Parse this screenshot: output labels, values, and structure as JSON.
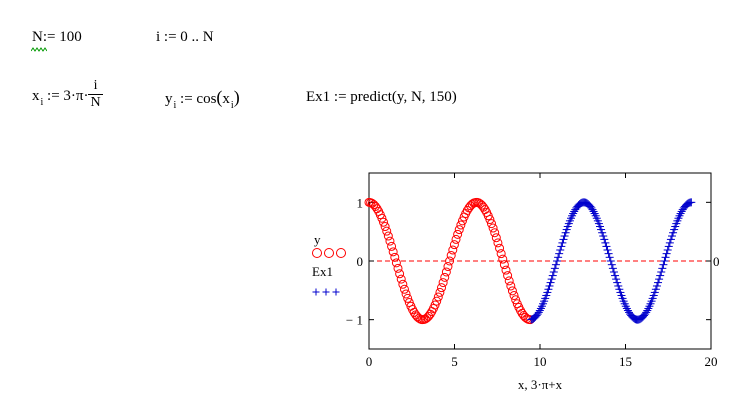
{
  "worksheet": {
    "def_N": {
      "name": "N",
      "assign": ":= ",
      "value": "100"
    },
    "def_i": {
      "text": "i := 0 .. N"
    },
    "def_x": {
      "lhs": "x",
      "sub": "i",
      "rhs_prefix": " := 3·π·",
      "frac_num": "i",
      "frac_den": "N"
    },
    "def_y": {
      "lhs": "y",
      "sub": "i",
      "rhs_prefix": " := cos",
      "arg_x": "x",
      "arg_sub": "i"
    },
    "def_ex1": {
      "text": "Ex1 := predict(y, N, 150)"
    }
  },
  "colors": {
    "series_y": "#ff0000",
    "series_ex1": "#0000cc",
    "zero_marker": "#ff0000",
    "squiggle": "#009900"
  },
  "chart_data": {
    "type": "scatter",
    "xlim": [
      0,
      20
    ],
    "ylim": [
      -1.5,
      1.5
    ],
    "x_ticks": [
      0,
      5,
      10,
      15,
      20
    ],
    "y_ticks": [
      -1,
      0,
      1
    ],
    "y_tick_labels": [
      "− 1",
      "0",
      "1"
    ],
    "right_tick_label": "0",
    "xlabel": "x, 3·π+x",
    "legend": {
      "y_name": "y",
      "y_symbol": "OOO",
      "ex1_name": "Ex1",
      "ex1_symbol": "+++"
    },
    "marker_line": {
      "y": 0,
      "style": "dashed"
    },
    "series": [
      {
        "name": "y",
        "marker": "circle",
        "x_from": 0,
        "x_to": "3π",
        "n_points": 101,
        "formula": "cos(x)"
      },
      {
        "name": "Ex1",
        "marker": "plus",
        "x_from": "3π",
        "x_to": "6π",
        "n_points": 150,
        "formula": "cos(x)"
      }
    ]
  }
}
